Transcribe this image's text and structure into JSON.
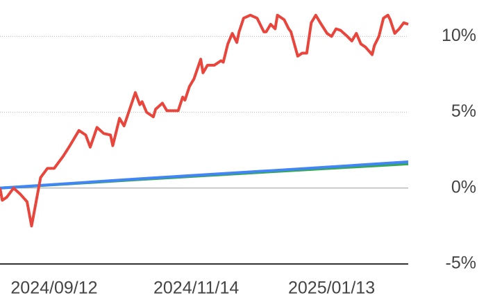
{
  "chart_data": {
    "type": "line",
    "x": [
      "2024-08-19",
      "2024-08-20",
      "2024-08-22",
      "2024-08-25",
      "2024-08-28",
      "2024-08-31",
      "2024-09-02",
      "2024-09-04",
      "2024-09-06",
      "2024-09-09",
      "2024-09-12",
      "2024-09-16",
      "2024-09-19",
      "2024-09-23",
      "2024-09-26",
      "2024-09-28",
      "2024-10-01",
      "2024-10-04",
      "2024-10-07",
      "2024-10-08",
      "2024-10-11",
      "2024-10-13",
      "2024-10-18",
      "2024-10-20",
      "2024-10-21",
      "2024-10-23",
      "2024-10-26",
      "2024-10-27",
      "2024-10-30",
      "2024-11-01",
      "2024-11-04",
      "2024-11-06",
      "2024-11-08",
      "2024-11-09",
      "2024-11-11",
      "2024-11-13",
      "2024-11-16",
      "2024-11-17",
      "2024-11-19",
      "2024-11-22",
      "2024-11-25",
      "2024-11-26",
      "2024-11-28",
      "2024-11-30",
      "2024-12-02",
      "2024-12-03",
      "2024-12-05",
      "2024-12-08",
      "2024-12-11",
      "2024-12-14",
      "2024-12-15",
      "2024-12-17",
      "2024-12-19",
      "2024-12-20",
      "2024-12-23",
      "2024-12-25",
      "2024-12-26",
      "2024-12-29",
      "2024-12-31",
      "2025-01-02",
      "2025-01-04",
      "2025-01-06",
      "2025-01-08",
      "2025-01-11",
      "2025-01-13",
      "2025-01-15",
      "2025-01-17",
      "2025-01-20",
      "2025-01-22",
      "2025-01-24",
      "2025-01-26",
      "2025-01-28",
      "2025-01-31",
      "2025-02-01",
      "2025-02-03",
      "2025-02-05",
      "2025-02-07",
      "2025-02-08",
      "2025-02-10",
      "2025-02-12",
      "2025-02-14",
      "2025-02-16"
    ],
    "series": [
      {
        "color": "#e8453c",
        "values": [
          0,
          -0.8,
          -0.6,
          0,
          -0.4,
          -0.9,
          -2.5,
          -0.9,
          0.7,
          1.3,
          1.3,
          2.1,
          2.8,
          3.8,
          3.5,
          2.7,
          4.0,
          3.6,
          3.5,
          2.8,
          4.6,
          4.1,
          6.3,
          5.5,
          5.7,
          5.0,
          4.7,
          5.2,
          5.6,
          5.1,
          5.1,
          5.1,
          6.0,
          5.8,
          6.7,
          7.2,
          8.5,
          7.6,
          8.1,
          8.1,
          8.4,
          8.3,
          9.5,
          10.2,
          9.6,
          10.3,
          11.2,
          11.4,
          11.2,
          10.3,
          10.3,
          10.8,
          10.5,
          11.4,
          11.1,
          10.5,
          10.3,
          8.7,
          8.9,
          8.9,
          10.9,
          11.4,
          10.9,
          10.2,
          10.0,
          10.5,
          10.4,
          10.0,
          9.7,
          10.2,
          9.5,
          9.3,
          8.8,
          9.4,
          10.0,
          11.2,
          11.4,
          11.1,
          10.2,
          10.5,
          10.9,
          10.8
        ]
      },
      {
        "color": "#4285f4",
        "x": [
          "2024-08-19",
          "2024-10-18",
          "2024-12-17",
          "2025-02-16"
        ],
        "values": [
          0,
          0.6,
          1.15,
          1.73
        ]
      },
      {
        "color": "#34a853",
        "x": [
          "2024-08-19",
          "2024-10-18",
          "2024-12-17",
          "2025-02-16"
        ],
        "values": [
          0,
          0.55,
          1.08,
          1.6
        ]
      }
    ],
    "xlim": [
      "2024-08-19",
      "2025-02-16"
    ],
    "xticks": [
      {
        "value": "2024-09-12",
        "label": "2024/09/12"
      },
      {
        "value": "2024-11-14",
        "label": "2024/11/14"
      },
      {
        "value": "2025-01-13",
        "label": "2025/01/13"
      }
    ],
    "ylim": [
      -5,
      12.4
    ],
    "yticks": [
      {
        "value": 10,
        "label": "10%"
      },
      {
        "value": 5,
        "label": "5%"
      },
      {
        "value": 0,
        "label": "0%"
      },
      {
        "value": -5,
        "label": "-5%"
      }
    ],
    "grid": true
  }
}
